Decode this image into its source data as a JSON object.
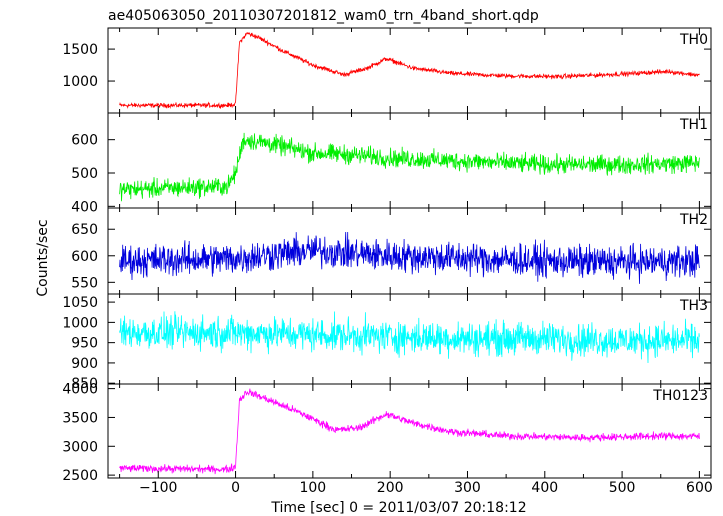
{
  "chart_data": {
    "type": "line",
    "title": "ae405063050_20110307201812_wam0_trn_4band_short.qdp",
    "xlabel": "Time [sec] 0 = 2011/03/07 20:18:12",
    "ylabel": "Counts/sec",
    "xlim": [
      -165,
      615
    ],
    "xticks": [
      -100,
      0,
      100,
      200,
      300,
      400,
      500,
      600
    ],
    "xtick_labels": [
      "−100",
      "0",
      "100",
      "200",
      "300",
      "400",
      "500",
      "600"
    ],
    "grid": false,
    "panels": [
      {
        "name": "TH0",
        "color": "#ff0000",
        "ylim": [
          500,
          1830
        ],
        "yticks": [
          1000,
          1500
        ],
        "ytick_labels": [
          "1000",
          "1500"
        ],
        "x": [
          -150,
          -10,
          0,
          5,
          15,
          30,
          60,
          100,
          140,
          170,
          195,
          230,
          280,
          350,
          420,
          500,
          560,
          600
        ],
        "y": [
          620,
          620,
          640,
          1600,
          1750,
          1680,
          1480,
          1250,
          1100,
          1200,
          1350,
          1200,
          1120,
          1080,
          1070,
          1110,
          1150,
          1090
        ],
        "noise": 30
      },
      {
        "name": "TH1",
        "color": "#00ee00",
        "ylim": [
          395,
          680
        ],
        "yticks": [
          400,
          500,
          600
        ],
        "ytick_labels": [
          "400",
          "500",
          "600"
        ],
        "x": [
          -150,
          -10,
          0,
          10,
          40,
          100,
          150,
          200,
          300,
          400,
          500,
          600
        ],
        "y": [
          450,
          460,
          500,
          600,
          590,
          560,
          555,
          545,
          535,
          525,
          525,
          530
        ],
        "noise": 24
      },
      {
        "name": "TH2",
        "color": "#0000dd",
        "ylim": [
          528,
          690
        ],
        "yticks": [
          550,
          600,
          650
        ],
        "ytick_labels": [
          "550",
          "600",
          "650"
        ],
        "x": [
          -150,
          0,
          100,
          200,
          300,
          400,
          500,
          600
        ],
        "y": [
          590,
          595,
          610,
          600,
          595,
          590,
          588,
          590
        ],
        "noise": 26
      },
      {
        "name": "TH3",
        "color": "#00ffff",
        "ylim": [
          848,
          1070
        ],
        "yticks": [
          850,
          900,
          950,
          1000,
          1050
        ],
        "ytick_labels": [
          "850",
          "900",
          "950",
          "1000",
          "1050"
        ],
        "x": [
          -150,
          0,
          100,
          200,
          300,
          400,
          500,
          600
        ],
        "y": [
          975,
          975,
          970,
          965,
          960,
          960,
          955,
          955
        ],
        "noise": 35
      },
      {
        "name": "TH0123",
        "color": "#ff00ff",
        "ylim": [
          2450,
          4080
        ],
        "yticks": [
          2500,
          3000,
          3500,
          4000
        ],
        "ytick_labels": [
          "2500",
          "3000",
          "3500",
          "4000"
        ],
        "x": [
          -150,
          -10,
          0,
          5,
          15,
          40,
          80,
          130,
          160,
          195,
          230,
          280,
          350,
          450,
          550,
          600
        ],
        "y": [
          2620,
          2600,
          2650,
          3800,
          3950,
          3820,
          3600,
          3280,
          3320,
          3560,
          3400,
          3250,
          3180,
          3150,
          3180,
          3170
        ],
        "noise": 55
      }
    ]
  }
}
